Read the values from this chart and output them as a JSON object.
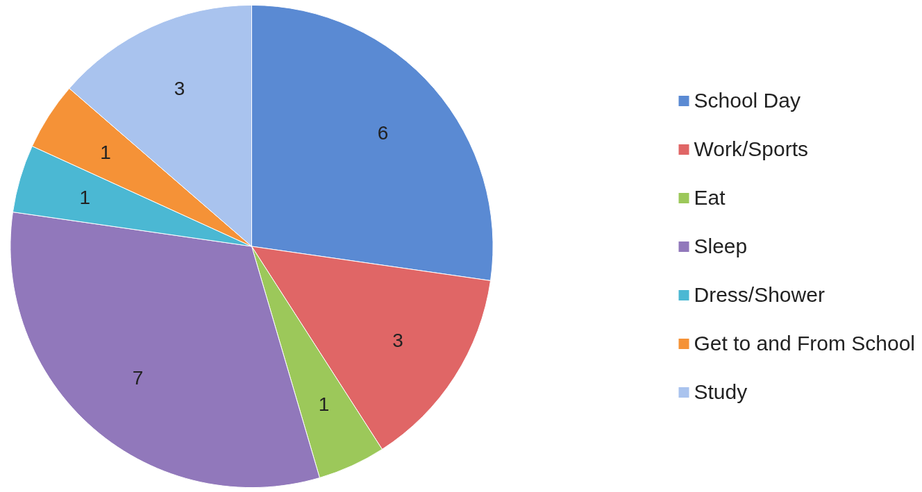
{
  "chart_data": {
    "type": "pie",
    "categories": [
      "School Day",
      "Work/Sports",
      "Eat",
      "Sleep",
      "Dress/Shower",
      "Get to and From School",
      "Study"
    ],
    "values": [
      6,
      3,
      1,
      7,
      1,
      1,
      3
    ],
    "colors": [
      "#5a8ad3",
      "#e06666",
      "#9cc85a",
      "#9178bb",
      "#4bb8d3",
      "#f59237",
      "#a9c3ee"
    ],
    "data_labels": true,
    "legend": "right"
  }
}
